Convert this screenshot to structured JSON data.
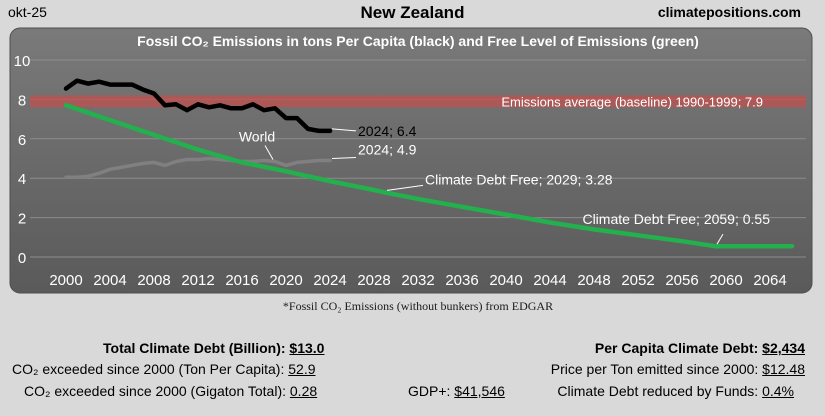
{
  "header": {
    "date": "okt-25",
    "country": "New Zealand",
    "site": "climatepositions.com"
  },
  "chart_data": {
    "type": "line",
    "title": "Fossil CO₂ Emissions in tons Per Capita (black) and Free Level of Emissions (green)",
    "footnote": "*Fossil CO₂ Emissions (without bunkers) from EDGAR",
    "xlim": [
      2000,
      2066
    ],
    "ylim": [
      0,
      10
    ],
    "x_ticks": [
      2000,
      2004,
      2008,
      2012,
      2016,
      2020,
      2024,
      2028,
      2032,
      2036,
      2040,
      2044,
      2048,
      2052,
      2056,
      2060,
      2064
    ],
    "y_ticks": [
      0,
      2,
      4,
      6,
      8,
      10
    ],
    "baseline": {
      "value": 7.9,
      "label": "Emissions average (baseline) 1990-1999; 7.9",
      "color": "#c0504d"
    },
    "series": [
      {
        "name": "New Zealand",
        "color": "#000000",
        "x": [
          2000,
          2001,
          2002,
          2003,
          2004,
          2005,
          2006,
          2007,
          2008,
          2009,
          2010,
          2011,
          2012,
          2013,
          2014,
          2015,
          2016,
          2017,
          2018,
          2019,
          2020,
          2021,
          2022,
          2023,
          2024
        ],
        "y": [
          8.55,
          8.95,
          8.8,
          8.9,
          8.75,
          8.75,
          8.75,
          8.5,
          8.3,
          7.7,
          7.75,
          7.45,
          7.75,
          7.6,
          7.7,
          7.55,
          7.55,
          7.75,
          7.45,
          7.55,
          7.05,
          7.05,
          6.5,
          6.4,
          6.4
        ]
      },
      {
        "name": "World",
        "color": "#808080",
        "x": [
          2000,
          2001,
          2002,
          2003,
          2004,
          2005,
          2006,
          2007,
          2008,
          2009,
          2010,
          2011,
          2012,
          2013,
          2014,
          2015,
          2016,
          2017,
          2018,
          2019,
          2020,
          2021,
          2022,
          2023,
          2024
        ],
        "y": [
          4.05,
          4.05,
          4.1,
          4.25,
          4.45,
          4.55,
          4.65,
          4.75,
          4.8,
          4.65,
          4.85,
          4.95,
          4.95,
          5.0,
          4.95,
          4.9,
          4.85,
          4.85,
          4.9,
          4.85,
          4.65,
          4.8,
          4.85,
          4.9,
          4.9
        ]
      },
      {
        "name": "Free Level of Emissions",
        "color": "#22b14c",
        "x": [
          2000,
          2004,
          2008,
          2012,
          2016,
          2020,
          2024,
          2028,
          2029,
          2032,
          2036,
          2040,
          2044,
          2048,
          2052,
          2056,
          2059,
          2064,
          2066
        ],
        "y": [
          7.7,
          6.95,
          6.2,
          5.45,
          4.8,
          4.35,
          3.85,
          3.4,
          3.28,
          2.95,
          2.55,
          2.15,
          1.75,
          1.4,
          1.1,
          0.8,
          0.55,
          0.55,
          0.55
        ]
      }
    ],
    "annotations": [
      {
        "text": "2024; 6.4",
        "x": 2024,
        "y": 6.4
      },
      {
        "text": "2024; 4.9",
        "x": 2024,
        "y": 4.9
      },
      {
        "text": "World",
        "x": 2019,
        "y": 4.85
      },
      {
        "text": "Climate Debt Free; 2029; 3.28",
        "x": 2029,
        "y": 3.28
      },
      {
        "text": "Climate Debt Free; 2059; 0.55",
        "x": 2059,
        "y": 0.55
      }
    ]
  },
  "stats": {
    "total_debt_label": "Total Climate Debt (Billion):",
    "total_debt_value": "$13.0",
    "exceeded_tpc_label": "CO₂ exceeded since 2000 (Ton Per Capita):",
    "exceeded_tpc_value": "52.9",
    "exceeded_gt_label": "CO₂ exceeded since 2000 (Gigaton Total):",
    "exceeded_gt_value": "0.28",
    "gdp_label": "GDP+:",
    "gdp_value": "$41,546",
    "per_capita_debt_label": "Per Capita Climate Debt:",
    "per_capita_debt_value": "$2,434",
    "price_per_ton_label": "Price per Ton emitted since 2000:",
    "price_per_ton_value": "$12.48",
    "reduced_funds_label": "Climate Debt reduced by Funds:",
    "reduced_funds_value": "0.4%"
  }
}
